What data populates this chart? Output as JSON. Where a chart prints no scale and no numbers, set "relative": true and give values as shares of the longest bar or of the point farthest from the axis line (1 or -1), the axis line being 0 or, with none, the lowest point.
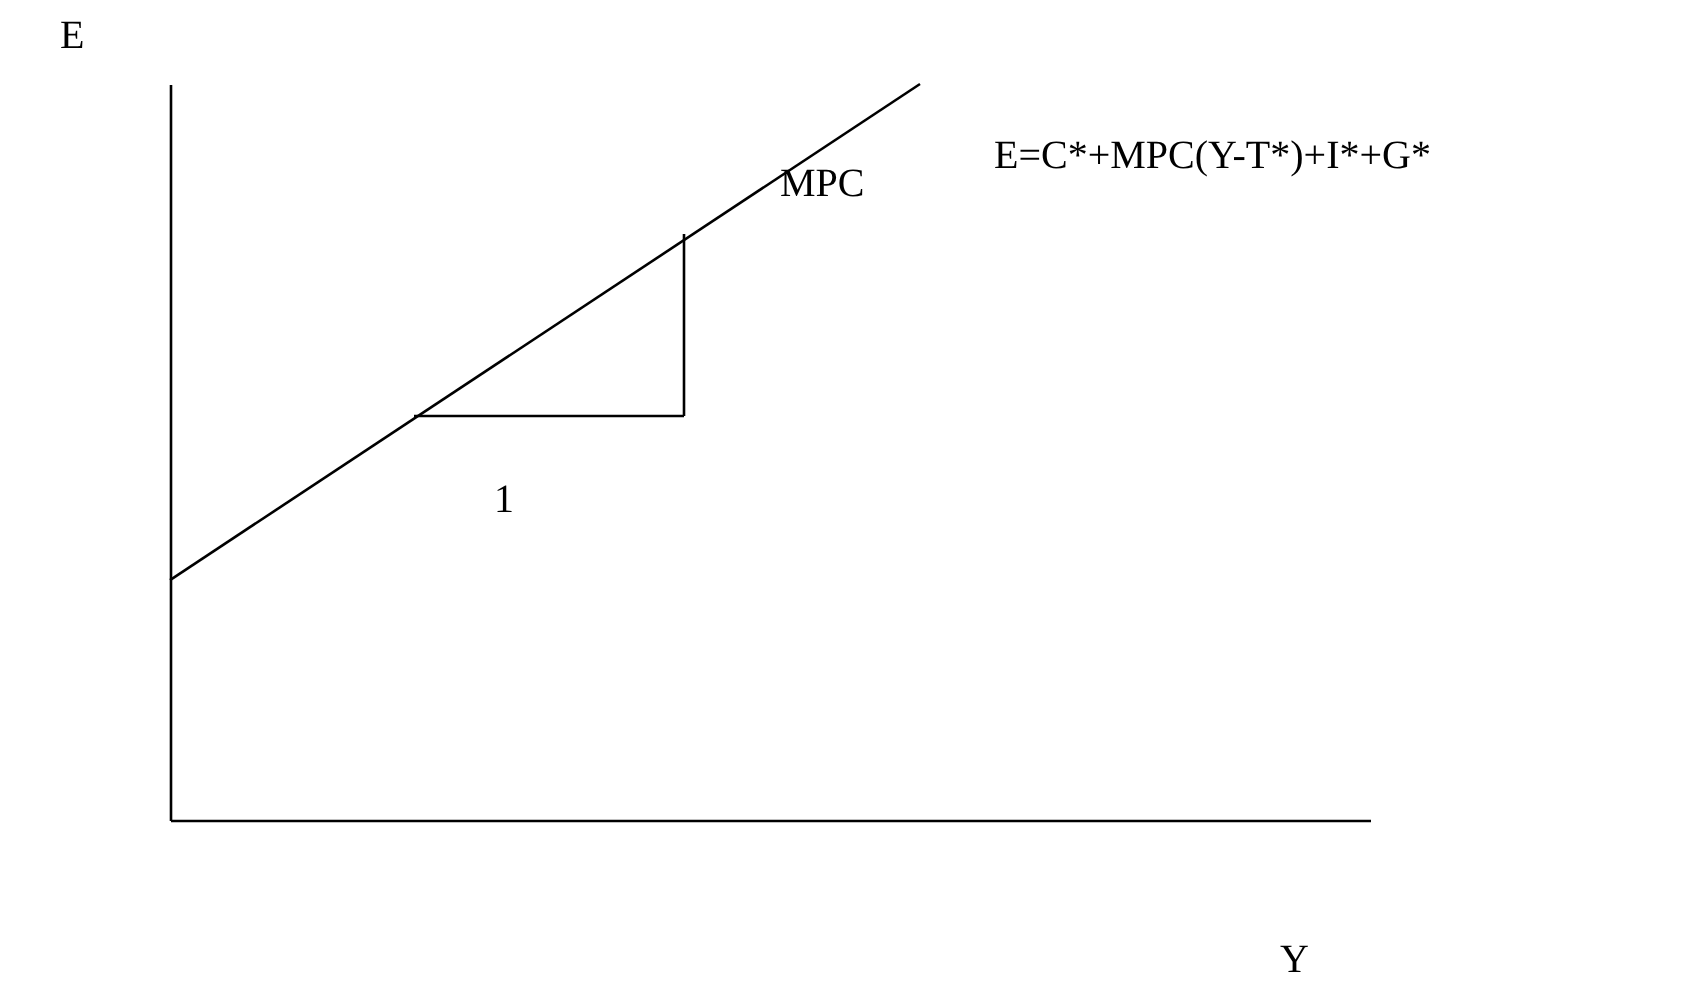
{
  "chart_data": {
    "type": "line",
    "relative": true,
    "xlabel": "Y",
    "ylabel": "E",
    "categories": [
      null,
      null,
      null,
      null,
      null,
      null,
      null,
      null,
      null
    ],
    "grid": false,
    "marker": "none",
    "line_style": "solid",
    "series": [
      {
        "color": "#000000",
        "values": [
          0.326,
          null,
          null,
          null,
          null,
          1,
          null,
          null,
          null
        ]
      }
    ],
    "annotations": [
      "E=C*+MPC(Y-T*)+I*+G*",
      "MPC",
      "1"
    ]
  }
}
